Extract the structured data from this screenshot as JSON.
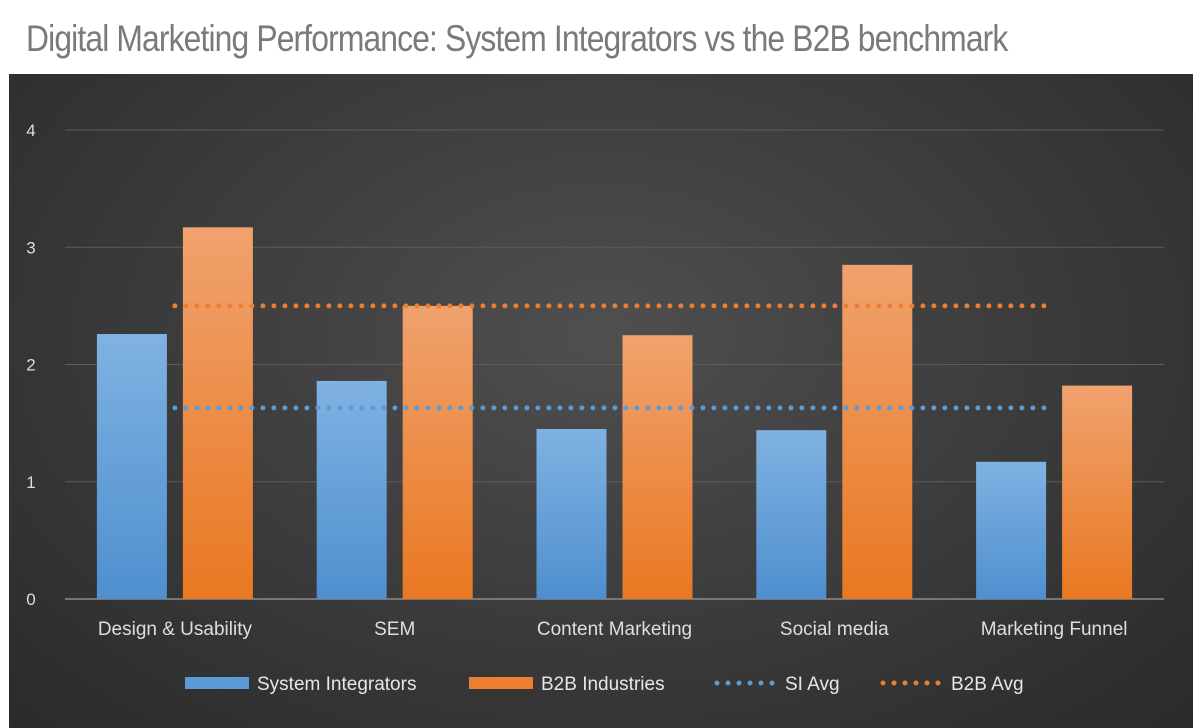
{
  "title": "Digital Marketing Performance: System Integrators vs the B2B benchmark",
  "colors": {
    "si": "#5b9bd5",
    "b2b": "#ed7d31",
    "grid": "#5c5c5c",
    "axis": "#8c8c8c",
    "background": "#3c3c3c"
  },
  "chart_data": {
    "type": "bar",
    "categories": [
      "Design & Usability",
      "SEM",
      "Content Marketing",
      "Social media",
      "Marketing Funnel"
    ],
    "series": [
      {
        "name": "System Integrators",
        "values": [
          2.26,
          1.86,
          1.45,
          1.44,
          1.17
        ]
      },
      {
        "name": "B2B Industries",
        "values": [
          3.17,
          2.5,
          2.25,
          2.85,
          1.82
        ]
      }
    ],
    "reference_lines": [
      {
        "name": "SI Avg",
        "value": 1.63,
        "style": "dotted",
        "color": "#5b9bd5"
      },
      {
        "name": "B2B Avg",
        "value": 2.5,
        "style": "dotted",
        "color": "#ed7d31"
      }
    ],
    "ylim": [
      0,
      4
    ],
    "yticks": [
      "0",
      "1",
      "2",
      "3",
      "4"
    ],
    "xlabel": "",
    "ylabel": "",
    "grid": true,
    "legend_position": "bottom"
  }
}
